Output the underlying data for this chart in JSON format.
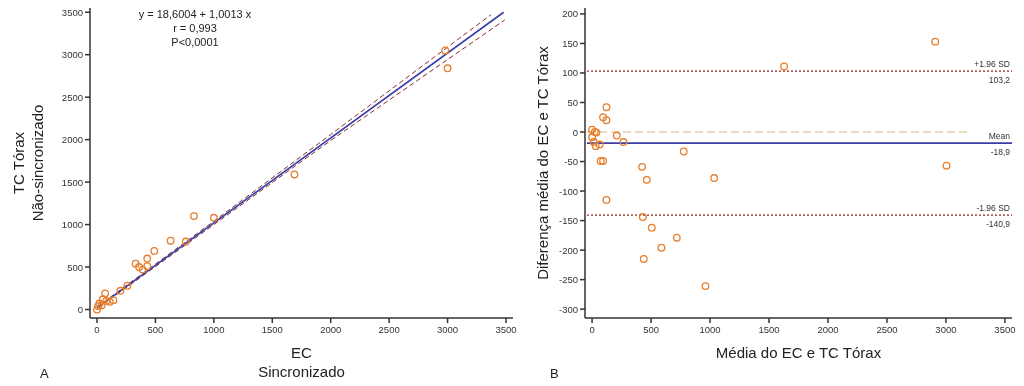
{
  "chart_data": [
    {
      "type": "scatter",
      "title": "A",
      "xlabel": "EC\nSincronizado",
      "ylabel": "TC Tórax\nNão-sincronizado",
      "annotations": [
        "y = 18,6004 + 1,0013 x",
        "r = 0,993",
        "P<0,0001"
      ],
      "xlim": [
        -60,
        3560
      ],
      "ylim": [
        -100,
        3550
      ],
      "xticks": [
        0,
        500,
        1000,
        1500,
        2000,
        2500,
        3000,
        3500
      ],
      "yticks": [
        0,
        500,
        1000,
        1500,
        2000,
        2500,
        3000,
        3500
      ],
      "marker": "circle",
      "series": [
        {
          "type": "line",
          "marker": "none",
          "color": "#8b2a2a",
          "line_style": "dashed",
          "x": [
            0,
            1000,
            2000,
            3370
          ],
          "values": [
            30,
            1040,
            2060,
            3470
          ]
        },
        {
          "type": "line",
          "marker": "none",
          "color": "#8b2a2a",
          "line_style": "dashed",
          "x": [
            0,
            1000,
            2000,
            3490
          ],
          "values": [
            10,
            1000,
            1990,
            3410
          ]
        },
        {
          "type": "line",
          "marker": "none",
          "color": "#3a3fa8",
          "line_style": "solid",
          "x": [
            0,
            3480
          ],
          "values": [
            20,
            3500
          ]
        },
        {
          "color": "#e87d2a",
          "x": [
            2980,
            3000,
            1690,
            830,
            1000,
            630,
            760,
            490,
            330,
            360,
            430,
            430,
            390,
            260,
            200,
            70,
            140,
            110,
            50,
            20,
            0,
            10,
            40,
            80
          ],
          "values": [
            3050,
            2840,
            1590,
            1100,
            1080,
            810,
            800,
            690,
            540,
            500,
            600,
            510,
            470,
            280,
            220,
            190,
            110,
            90,
            120,
            70,
            0,
            40,
            50,
            100
          ]
        }
      ]
    },
    {
      "type": "scatter",
      "title": "B",
      "xlabel": "Média do EC e TC Tórax",
      "ylabel": "Diferença média do EC e TC Tórax",
      "xlim": [
        -60,
        3560
      ],
      "ylim": [
        -315,
        210
      ],
      "xticks": [
        0,
        500,
        1000,
        1500,
        2000,
        2500,
        3000,
        3500
      ],
      "yticks": [
        -300,
        -250,
        -200,
        -150,
        -100,
        -50,
        0,
        50,
        100,
        150,
        200
      ],
      "marker": "circle",
      "ref_lines": [
        {
          "axis": "y",
          "value": 0,
          "color": "#d9b98a",
          "line_style": "dashed"
        },
        {
          "axis": "y",
          "value": 103.2,
          "label": "+1.96 SD\n103,2",
          "color": "#8b2a2a",
          "line_style": "dotted"
        },
        {
          "axis": "y",
          "value": -18.9,
          "label": "Mean\n-18,9",
          "color": "#3a3fa8",
          "line_style": "solid"
        },
        {
          "axis": "y",
          "value": -140.9,
          "label": "-1.96 SD\n-140,9",
          "color": "#8b2a2a",
          "line_style": "dotted"
        }
      ],
      "series": [
        {
          "color": "#e87d2a",
          "x": [
            2909,
            1628,
            3005,
            122,
            93,
            122,
            0,
            23,
            37,
            0,
            14,
            31,
            65,
            209,
            266,
            777,
            73,
            93,
            424,
            464,
            1035,
            122,
            430,
            506,
            718,
            588,
            438,
            961
          ],
          "values": [
            153,
            111,
            -57,
            42,
            25,
            20,
            4,
            0,
            -1,
            -9,
            -17,
            -24,
            -21,
            -6,
            -17,
            -33,
            -49,
            -49,
            -59,
            -81,
            -78,
            -115,
            -144,
            -162,
            -179,
            -196,
            -215,
            -261
          ]
        }
      ]
    }
  ]
}
